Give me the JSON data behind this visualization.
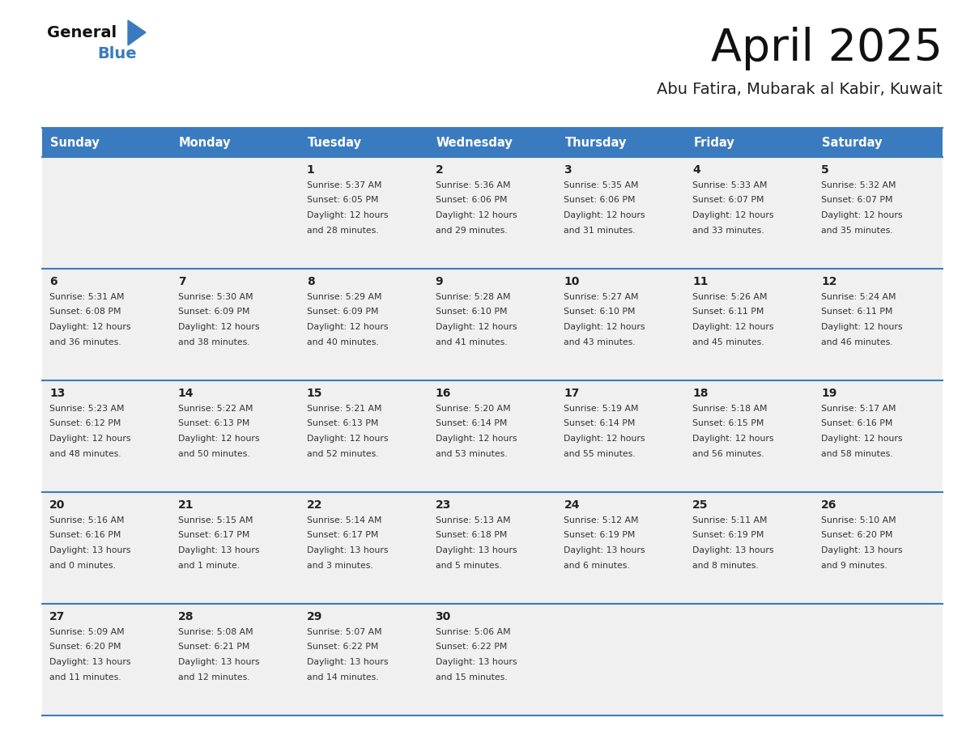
{
  "title": "April 2025",
  "subtitle": "Abu Fatira, Mubarak al Kabir, Kuwait",
  "header_color": "#3a7bbf",
  "header_text_color": "#ffffff",
  "days_of_week": [
    "Sunday",
    "Monday",
    "Tuesday",
    "Wednesday",
    "Thursday",
    "Friday",
    "Saturday"
  ],
  "weeks": [
    [
      {
        "day": "",
        "sunrise": "",
        "sunset": "",
        "daylight_line1": "",
        "daylight_line2": ""
      },
      {
        "day": "",
        "sunrise": "",
        "sunset": "",
        "daylight_line1": "",
        "daylight_line2": ""
      },
      {
        "day": "1",
        "sunrise": "5:37 AM",
        "sunset": "6:05 PM",
        "daylight_line1": "Daylight: 12 hours",
        "daylight_line2": "and 28 minutes."
      },
      {
        "day": "2",
        "sunrise": "5:36 AM",
        "sunset": "6:06 PM",
        "daylight_line1": "Daylight: 12 hours",
        "daylight_line2": "and 29 minutes."
      },
      {
        "day": "3",
        "sunrise": "5:35 AM",
        "sunset": "6:06 PM",
        "daylight_line1": "Daylight: 12 hours",
        "daylight_line2": "and 31 minutes."
      },
      {
        "day": "4",
        "sunrise": "5:33 AM",
        "sunset": "6:07 PM",
        "daylight_line1": "Daylight: 12 hours",
        "daylight_line2": "and 33 minutes."
      },
      {
        "day": "5",
        "sunrise": "5:32 AM",
        "sunset": "6:07 PM",
        "daylight_line1": "Daylight: 12 hours",
        "daylight_line2": "and 35 minutes."
      }
    ],
    [
      {
        "day": "6",
        "sunrise": "5:31 AM",
        "sunset": "6:08 PM",
        "daylight_line1": "Daylight: 12 hours",
        "daylight_line2": "and 36 minutes."
      },
      {
        "day": "7",
        "sunrise": "5:30 AM",
        "sunset": "6:09 PM",
        "daylight_line1": "Daylight: 12 hours",
        "daylight_line2": "and 38 minutes."
      },
      {
        "day": "8",
        "sunrise": "5:29 AM",
        "sunset": "6:09 PM",
        "daylight_line1": "Daylight: 12 hours",
        "daylight_line2": "and 40 minutes."
      },
      {
        "day": "9",
        "sunrise": "5:28 AM",
        "sunset": "6:10 PM",
        "daylight_line1": "Daylight: 12 hours",
        "daylight_line2": "and 41 minutes."
      },
      {
        "day": "10",
        "sunrise": "5:27 AM",
        "sunset": "6:10 PM",
        "daylight_line1": "Daylight: 12 hours",
        "daylight_line2": "and 43 minutes."
      },
      {
        "day": "11",
        "sunrise": "5:26 AM",
        "sunset": "6:11 PM",
        "daylight_line1": "Daylight: 12 hours",
        "daylight_line2": "and 45 minutes."
      },
      {
        "day": "12",
        "sunrise": "5:24 AM",
        "sunset": "6:11 PM",
        "daylight_line1": "Daylight: 12 hours",
        "daylight_line2": "and 46 minutes."
      }
    ],
    [
      {
        "day": "13",
        "sunrise": "5:23 AM",
        "sunset": "6:12 PM",
        "daylight_line1": "Daylight: 12 hours",
        "daylight_line2": "and 48 minutes."
      },
      {
        "day": "14",
        "sunrise": "5:22 AM",
        "sunset": "6:13 PM",
        "daylight_line1": "Daylight: 12 hours",
        "daylight_line2": "and 50 minutes."
      },
      {
        "day": "15",
        "sunrise": "5:21 AM",
        "sunset": "6:13 PM",
        "daylight_line1": "Daylight: 12 hours",
        "daylight_line2": "and 52 minutes."
      },
      {
        "day": "16",
        "sunrise": "5:20 AM",
        "sunset": "6:14 PM",
        "daylight_line1": "Daylight: 12 hours",
        "daylight_line2": "and 53 minutes."
      },
      {
        "day": "17",
        "sunrise": "5:19 AM",
        "sunset": "6:14 PM",
        "daylight_line1": "Daylight: 12 hours",
        "daylight_line2": "and 55 minutes."
      },
      {
        "day": "18",
        "sunrise": "5:18 AM",
        "sunset": "6:15 PM",
        "daylight_line1": "Daylight: 12 hours",
        "daylight_line2": "and 56 minutes."
      },
      {
        "day": "19",
        "sunrise": "5:17 AM",
        "sunset": "6:16 PM",
        "daylight_line1": "Daylight: 12 hours",
        "daylight_line2": "and 58 minutes."
      }
    ],
    [
      {
        "day": "20",
        "sunrise": "5:16 AM",
        "sunset": "6:16 PM",
        "daylight_line1": "Daylight: 13 hours",
        "daylight_line2": "and 0 minutes."
      },
      {
        "day": "21",
        "sunrise": "5:15 AM",
        "sunset": "6:17 PM",
        "daylight_line1": "Daylight: 13 hours",
        "daylight_line2": "and 1 minute."
      },
      {
        "day": "22",
        "sunrise": "5:14 AM",
        "sunset": "6:17 PM",
        "daylight_line1": "Daylight: 13 hours",
        "daylight_line2": "and 3 minutes."
      },
      {
        "day": "23",
        "sunrise": "5:13 AM",
        "sunset": "6:18 PM",
        "daylight_line1": "Daylight: 13 hours",
        "daylight_line2": "and 5 minutes."
      },
      {
        "day": "24",
        "sunrise": "5:12 AM",
        "sunset": "6:19 PM",
        "daylight_line1": "Daylight: 13 hours",
        "daylight_line2": "and 6 minutes."
      },
      {
        "day": "25",
        "sunrise": "5:11 AM",
        "sunset": "6:19 PM",
        "daylight_line1": "Daylight: 13 hours",
        "daylight_line2": "and 8 minutes."
      },
      {
        "day": "26",
        "sunrise": "5:10 AM",
        "sunset": "6:20 PM",
        "daylight_line1": "Daylight: 13 hours",
        "daylight_line2": "and 9 minutes."
      }
    ],
    [
      {
        "day": "27",
        "sunrise": "5:09 AM",
        "sunset": "6:20 PM",
        "daylight_line1": "Daylight: 13 hours",
        "daylight_line2": "and 11 minutes."
      },
      {
        "day": "28",
        "sunrise": "5:08 AM",
        "sunset": "6:21 PM",
        "daylight_line1": "Daylight: 13 hours",
        "daylight_line2": "and 12 minutes."
      },
      {
        "day": "29",
        "sunrise": "5:07 AM",
        "sunset": "6:22 PM",
        "daylight_line1": "Daylight: 13 hours",
        "daylight_line2": "and 14 minutes."
      },
      {
        "day": "30",
        "sunrise": "5:06 AM",
        "sunset": "6:22 PM",
        "daylight_line1": "Daylight: 13 hours",
        "daylight_line2": "and 15 minutes."
      },
      {
        "day": "",
        "sunrise": "",
        "sunset": "",
        "daylight_line1": "",
        "daylight_line2": ""
      },
      {
        "day": "",
        "sunrise": "",
        "sunset": "",
        "daylight_line1": "",
        "daylight_line2": ""
      },
      {
        "day": "",
        "sunrise": "",
        "sunset": "",
        "daylight_line1": "",
        "daylight_line2": ""
      }
    ]
  ],
  "bg_color": "#ffffff",
  "cell_bg_color": "#f0f0f0",
  "cell_border_color": "#3a7bbf",
  "text_color": "#222222",
  "day_number_color": "#222222",
  "info_text_color": "#333333",
  "logo_general_color": "#111111",
  "logo_blue_color": "#3a7bbf",
  "logo_triangle_color": "#3a7bbf"
}
